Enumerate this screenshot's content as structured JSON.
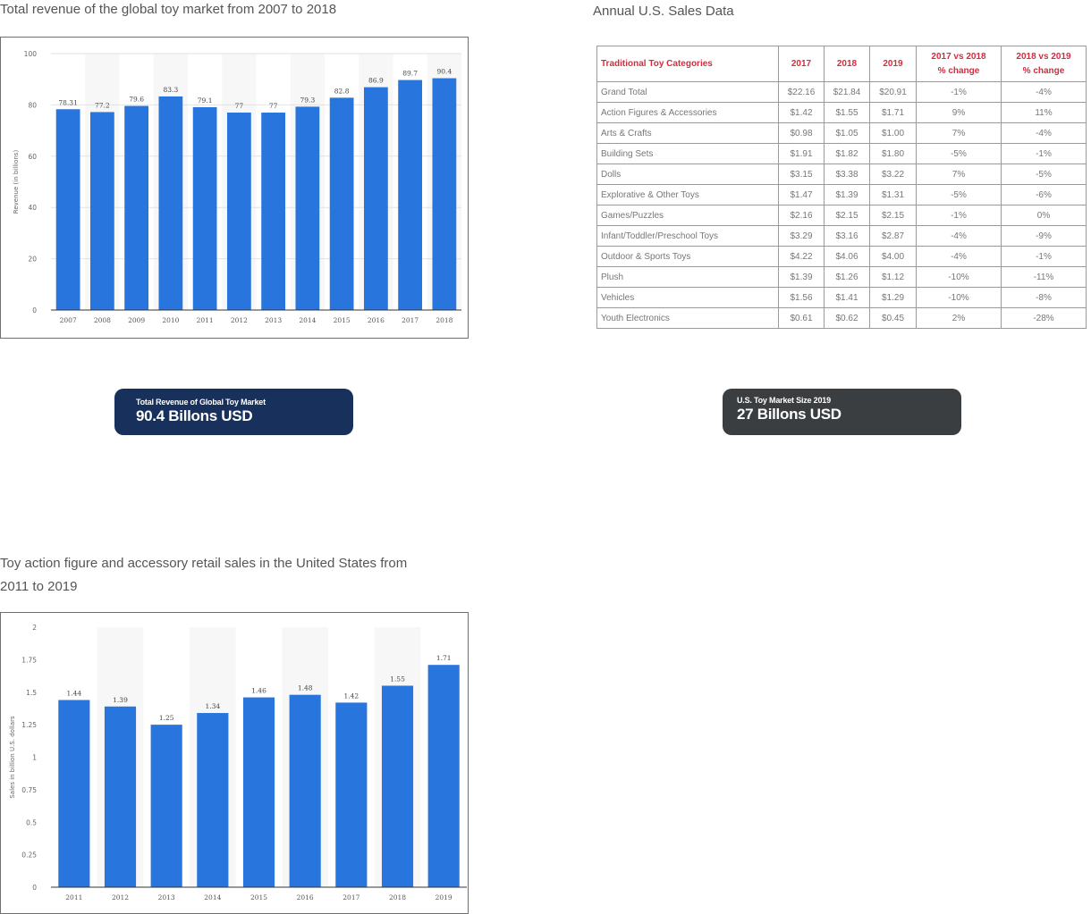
{
  "titles": {
    "chart1": "Total revenue of the global toy market from 2007 to 2018",
    "table": "Annual U.S. Sales Data",
    "chart2_line1": "Toy action figure and accessory retail sales in the United States from",
    "chart2_line2": "2011 to 2019"
  },
  "badges": {
    "global": {
      "label": "Total Revenue of Global Toy Market",
      "value": "90.4 Billons USD",
      "color": "#17305c"
    },
    "us": {
      "label": "U.S. Toy Market Size 2019",
      "value": "27 Billons USD",
      "color": "#3b3e40"
    }
  },
  "chart_data": [
    {
      "type": "bar",
      "title": "Total revenue of the global toy market from 2007 to 2018",
      "xlabel": "",
      "ylabel": "Revenue (in billions)",
      "categories": [
        "2007",
        "2008",
        "2009",
        "2010",
        "2011",
        "2012",
        "2013",
        "2014",
        "2015",
        "2016",
        "2017",
        "2018"
      ],
      "values": [
        78.31,
        77.2,
        79.6,
        83.3,
        79.1,
        77,
        77,
        79.3,
        82.8,
        86.9,
        89.7,
        90.4
      ],
      "labels": [
        "78.31",
        "77.2",
        "79.6",
        "83.3",
        "79.1",
        "77",
        "77",
        "79.3",
        "82.8",
        "86.9",
        "89.7",
        "90.4"
      ],
      "ylim": [
        0,
        100
      ],
      "yticks": [
        "0",
        "20",
        "40",
        "60",
        "80",
        "100"
      ],
      "grid": true,
      "bar_color": "#2876dd"
    },
    {
      "type": "bar",
      "title": "Toy action figure and accessory retail sales in the United States from 2011 to 2019",
      "xlabel": "",
      "ylabel": "Sales in billion U.S. dollars",
      "categories": [
        "2011",
        "2012",
        "2013",
        "2014",
        "2015",
        "2016",
        "2017",
        "2018",
        "2019"
      ],
      "values": [
        1.44,
        1.39,
        1.25,
        1.34,
        1.46,
        1.48,
        1.42,
        1.55,
        1.71
      ],
      "labels": [
        "1.44",
        "1.39",
        "1.25",
        "1.34",
        "1.46",
        "1.48",
        "1.42",
        "1.55",
        "1.71"
      ],
      "ylim": [
        0,
        2
      ],
      "yticks": [
        "0",
        "0.25",
        "0.5",
        "0.75",
        "1",
        "1.25",
        "1.5",
        "1.75",
        "2"
      ],
      "grid": false,
      "bar_color": "#2876dd"
    },
    {
      "type": "table",
      "title": "Annual U.S. Sales Data",
      "headers": [
        "Traditional Toy Categories",
        "2017",
        "2018",
        "2019",
        "2017 vs 2018 % change",
        "2018 vs 2019 % change"
      ],
      "rows": [
        [
          "Grand Total",
          "$22.16",
          "$21.84",
          "$20.91",
          "-1%",
          "-4%"
        ],
        [
          "Action Figures & Accessories",
          "$1.42",
          "$1.55",
          "$1.71",
          "9%",
          "11%"
        ],
        [
          "Arts & Crafts",
          "$0.98",
          "$1.05",
          "$1.00",
          "7%",
          "-4%"
        ],
        [
          "Building Sets",
          "$1.91",
          "$1.82",
          "$1.80",
          "-5%",
          "-1%"
        ],
        [
          "Dolls",
          "$3.15",
          "$3.38",
          "$3.22",
          "7%",
          "-5%"
        ],
        [
          "Explorative & Other Toys",
          "$1.47",
          "$1.39",
          "$1.31",
          "-5%",
          "-6%"
        ],
        [
          "Games/Puzzles",
          "$2.16",
          "$2.15",
          "$2.15",
          "-1%",
          "0%"
        ],
        [
          "Infant/Toddler/Preschool Toys",
          "$3.29",
          "$3.16",
          "$2.87",
          "-4%",
          "-9%"
        ],
        [
          "Outdoor & Sports Toys",
          "$4.22",
          "$4.06",
          "$4.00",
          "-4%",
          "-1%"
        ],
        [
          "Plush",
          "$1.39",
          "$1.26",
          "$1.12",
          "-10%",
          "-11%"
        ],
        [
          "Vehicles",
          "$1.56",
          "$1.41",
          "$1.29",
          "-10%",
          "-8%"
        ],
        [
          "Youth Electronics",
          "$0.61",
          "$0.62",
          "$0.45",
          "2%",
          "-28%"
        ]
      ]
    }
  ],
  "table": {
    "headers": {
      "category": "Traditional Toy Categories",
      "y2017": "2017",
      "y2018": "2018",
      "y2019": "2019",
      "change1_line1": "2017 vs 2018",
      "change1_line2": "% change",
      "change2_line1": "2018 vs 2019",
      "change2_line2": "% change"
    }
  }
}
